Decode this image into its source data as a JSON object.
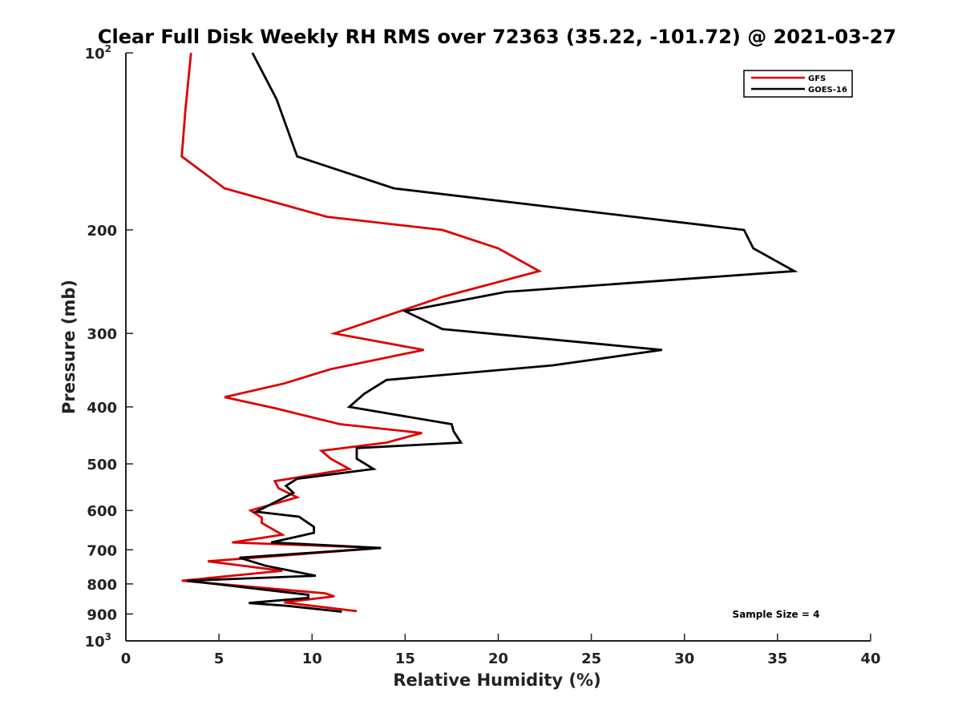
{
  "chart_data": {
    "type": "line",
    "title": "Clear Full Disk Weekly RH RMS over 72363 (35.22, -101.72) @ 2021-03-27",
    "xlabel": "Relative Humidity (%)",
    "ylabel": "Pressure (mb)",
    "xlim": [
      0,
      40
    ],
    "ylim": [
      100,
      1000
    ],
    "yscale": "log",
    "y_reversed": true,
    "xticks": [
      0,
      5,
      10,
      15,
      20,
      25,
      30,
      35,
      40
    ],
    "yticks": [
      {
        "value": 100,
        "label": "10",
        "sup": "2"
      },
      {
        "value": 200,
        "label": "200",
        "sup": ""
      },
      {
        "value": 300,
        "label": "300",
        "sup": ""
      },
      {
        "value": 400,
        "label": "400",
        "sup": ""
      },
      {
        "value": 500,
        "label": "500",
        "sup": ""
      },
      {
        "value": 600,
        "label": "600",
        "sup": ""
      },
      {
        "value": 700,
        "label": "700",
        "sup": ""
      },
      {
        "value": 800,
        "label": "800",
        "sup": ""
      },
      {
        "value": 900,
        "label": "900",
        "sup": ""
      },
      {
        "value": 1000,
        "label": "10",
        "sup": "3"
      }
    ],
    "legend_position": "top-right",
    "annotation": "Sample Size = 4",
    "series": [
      {
        "name": "GFS",
        "color": "#dd0000",
        "points": [
          [
            3.5,
            100
          ],
          [
            3.2,
            125
          ],
          [
            3.0,
            150
          ],
          [
            5.3,
            170
          ],
          [
            10.8,
            190
          ],
          [
            17.0,
            200
          ],
          [
            20.0,
            215
          ],
          [
            22.2,
            235
          ],
          [
            17.0,
            260
          ],
          [
            11.2,
            300
          ],
          [
            16.0,
            320
          ],
          [
            11.0,
            345
          ],
          [
            8.5,
            365
          ],
          [
            5.3,
            385
          ],
          [
            8.0,
            402
          ],
          [
            11.5,
            428
          ],
          [
            15.9,
            443
          ],
          [
            14.0,
            460
          ],
          [
            10.5,
            475
          ],
          [
            11.0,
            490
          ],
          [
            12.0,
            510
          ],
          [
            8.0,
            535
          ],
          [
            8.2,
            550
          ],
          [
            9.2,
            570
          ],
          [
            6.7,
            600
          ],
          [
            7.3,
            617
          ],
          [
            7.3,
            630
          ],
          [
            8.4,
            660
          ],
          [
            5.7,
            680
          ],
          [
            13.7,
            695
          ],
          [
            4.4,
            732
          ],
          [
            8.4,
            760
          ],
          [
            3.0,
            790
          ],
          [
            10.7,
            830
          ],
          [
            11.2,
            840
          ],
          [
            8.5,
            860
          ],
          [
            9.8,
            870
          ],
          [
            12.4,
            890
          ]
        ]
      },
      {
        "name": "GOES-16",
        "color": "#000000",
        "points": [
          [
            6.8,
            100
          ],
          [
            8.1,
            120
          ],
          [
            9.2,
            150
          ],
          [
            14.4,
            170
          ],
          [
            33.2,
            200
          ],
          [
            33.7,
            215
          ],
          [
            35.9,
            235
          ],
          [
            20.4,
            255
          ],
          [
            15.0,
            275
          ],
          [
            17.0,
            295
          ],
          [
            28.8,
            320
          ],
          [
            22.9,
            340
          ],
          [
            14.0,
            360
          ],
          [
            12.8,
            380
          ],
          [
            12.0,
            400
          ],
          [
            17.5,
            428
          ],
          [
            17.6,
            440
          ],
          [
            18.0,
            460
          ],
          [
            12.4,
            470
          ],
          [
            12.4,
            490
          ],
          [
            13.3,
            510
          ],
          [
            9.2,
            530
          ],
          [
            8.6,
            545
          ],
          [
            9.0,
            560
          ],
          [
            7.0,
            603
          ],
          [
            9.3,
            615
          ],
          [
            10.1,
            640
          ],
          [
            10.1,
            655
          ],
          [
            7.8,
            680
          ],
          [
            13.7,
            695
          ],
          [
            6.1,
            722
          ],
          [
            7.5,
            745
          ],
          [
            10.2,
            775
          ],
          [
            3.3,
            790
          ],
          [
            9.8,
            835
          ],
          [
            9.8,
            845
          ],
          [
            6.6,
            862
          ],
          [
            8.7,
            872
          ],
          [
            11.6,
            892
          ]
        ]
      }
    ]
  }
}
